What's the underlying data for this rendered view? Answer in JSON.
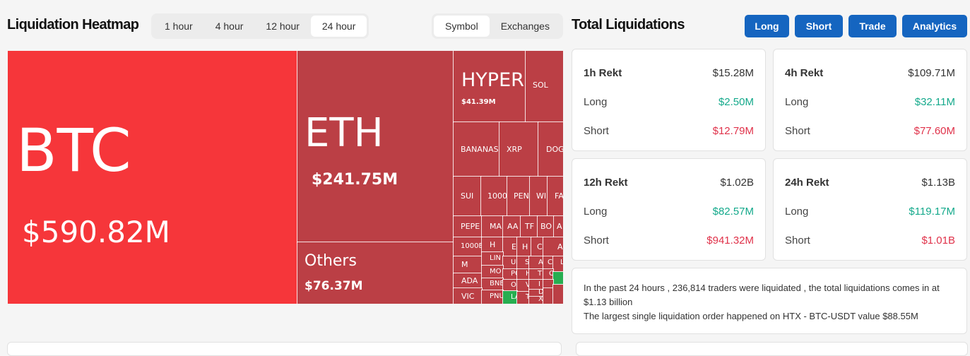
{
  "heatmap": {
    "title": "Liquidation Heatmap",
    "timeframes": [
      "1 hour",
      "4 hour",
      "12 hour",
      "24 hour"
    ],
    "active_timeframe": "24 hour",
    "views": [
      "Symbol",
      "Exchanges"
    ],
    "active_view": "Symbol",
    "tiles": [
      {
        "sym": "BTC",
        "val": "$590.82M"
      },
      {
        "sym": "ETH",
        "val": "$241.75M"
      },
      {
        "sym": "Others",
        "val": "$76.37M"
      },
      {
        "sym": "HYPER",
        "val": "$41.39M"
      },
      {
        "sym": "SOL"
      },
      {
        "sym": "BANANAS"
      },
      {
        "sym": "XRP"
      },
      {
        "sym": "DOG"
      },
      {
        "sym": "SUI"
      },
      {
        "sym": "1000"
      },
      {
        "sym": "PEN"
      },
      {
        "sym": "WI"
      },
      {
        "sym": "FA"
      },
      {
        "sym": "PEPE"
      },
      {
        "sym": "MA"
      },
      {
        "sym": "AA"
      },
      {
        "sym": "TF"
      },
      {
        "sym": "BO"
      },
      {
        "sym": "A"
      },
      {
        "sym": "1000E"
      },
      {
        "sym": "H"
      },
      {
        "sym": "E"
      },
      {
        "sym": "H"
      },
      {
        "sym": "C"
      },
      {
        "sym": "A"
      },
      {
        "sym": "M"
      },
      {
        "sym": "LIN"
      },
      {
        "sym": "UN"
      },
      {
        "sym": "S"
      },
      {
        "sym": "A"
      },
      {
        "sym": "C"
      },
      {
        "sym": "L"
      },
      {
        "sym": "ADA"
      },
      {
        "sym": "MO"
      },
      {
        "sym": "PO"
      },
      {
        "sym": "H"
      },
      {
        "sym": "T"
      },
      {
        "sym": "C"
      },
      {
        "sym": "BNE"
      },
      {
        "sym": "OF"
      },
      {
        "sym": "VI"
      },
      {
        "sym": "I"
      },
      {
        "sym": "VIC"
      },
      {
        "sym": "PNU"
      },
      {
        "sym": "LA"
      },
      {
        "sym": "TA"
      },
      {
        "sym": "D"
      },
      {
        "sym": "X"
      }
    ]
  },
  "total": {
    "title": "Total Liquidations",
    "buttons": [
      "Long",
      "Short",
      "Trade",
      "Analytics"
    ],
    "cards": [
      {
        "head": "1h Rekt",
        "total": "$15.28M",
        "long_label": "Long",
        "long": "$2.50M",
        "short_label": "Short",
        "short": "$12.79M"
      },
      {
        "head": "4h Rekt",
        "total": "$109.71M",
        "long_label": "Long",
        "long": "$32.11M",
        "short_label": "Short",
        "short": "$77.60M"
      },
      {
        "head": "12h Rekt",
        "total": "$1.02B",
        "long_label": "Long",
        "long": "$82.57M",
        "short_label": "Short",
        "short": "$941.32M"
      },
      {
        "head": "24h Rekt",
        "total": "$1.13B",
        "long_label": "Long",
        "long": "$119.17M",
        "short_label": "Short",
        "short": "$1.01B"
      }
    ],
    "summary_line1": "In the past 24 hours , 236,814 traders were liquidated , the total liquidations comes in at $1.13 billion",
    "summary_line2": "The largest single liquidation order happened on HTX - BTC-USDT value $88.55M"
  },
  "colors": {
    "accent_blue": "#1565c0",
    "btc_tile": "#f6363a",
    "tile_red": "#bb3f45",
    "tile_green": "#27ae51",
    "long_green": "#14a98b",
    "short_red": "#e0324a"
  }
}
